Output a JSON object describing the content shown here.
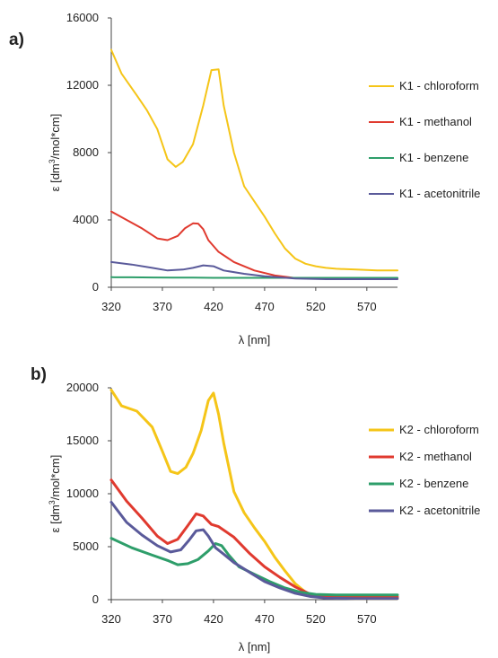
{
  "chart_data": [
    {
      "type": "line",
      "panel_label": "a)",
      "ylabel_main": "ε [dm",
      "ylabel_sup": "3",
      "ylabel_rest": "/mol*cm]",
      "xlabel": "λ [nm]",
      "xlim": [
        320,
        600
      ],
      "ylim": [
        0,
        16000
      ],
      "xticks": [
        320,
        370,
        420,
        470,
        520,
        570
      ],
      "yticks": [
        0,
        4000,
        8000,
        12000,
        16000
      ],
      "grid": false,
      "legend_position": "right",
      "series": [
        {
          "name": "K1 - chloroform",
          "color": "#f5c518",
          "x": [
            320,
            330,
            345,
            355,
            365,
            375,
            383,
            390,
            400,
            410,
            418,
            425,
            430,
            440,
            450,
            460,
            470,
            480,
            490,
            500,
            510,
            520,
            530,
            540,
            560,
            580,
            600
          ],
          "y": [
            14100,
            12700,
            11400,
            10500,
            9400,
            7600,
            7150,
            7450,
            8500,
            10800,
            12900,
            12950,
            10800,
            8000,
            6000,
            5100,
            4200,
            3200,
            2300,
            1700,
            1400,
            1250,
            1150,
            1100,
            1050,
            1000,
            1000
          ]
        },
        {
          "name": "K1 - methanol",
          "color": "#e03a2f",
          "x": [
            320,
            335,
            350,
            365,
            375,
            385,
            392,
            400,
            405,
            410,
            415,
            425,
            440,
            460,
            480,
            500,
            520,
            540,
            570,
            600
          ],
          "y": [
            4500,
            4000,
            3500,
            2900,
            2800,
            3050,
            3500,
            3800,
            3780,
            3450,
            2800,
            2100,
            1500,
            1000,
            700,
            550,
            520,
            500,
            500,
            500
          ]
        },
        {
          "name": "K1 - benzene",
          "color": "#2e9e6a",
          "x": [
            320,
            340,
            360,
            380,
            400,
            420,
            440,
            460,
            480,
            500,
            520,
            540,
            560,
            580,
            600
          ],
          "y": [
            600,
            590,
            580,
            570,
            570,
            560,
            560,
            560,
            560,
            560,
            560,
            560,
            560,
            560,
            560
          ]
        },
        {
          "name": "K1 - acetonitrile",
          "color": "#5a5a9a",
          "x": [
            320,
            340,
            360,
            375,
            390,
            400,
            410,
            420,
            430,
            450,
            470,
            500,
            530,
            560,
            600
          ],
          "y": [
            1500,
            1350,
            1150,
            1000,
            1050,
            1150,
            1300,
            1250,
            1000,
            800,
            650,
            520,
            480,
            480,
            480
          ]
        }
      ]
    },
    {
      "type": "line",
      "panel_label": "b)",
      "ylabel_main": "ε [dm",
      "ylabel_sup": "3",
      "ylabel_rest": "/mol*cm]",
      "xlabel": "λ [nm]",
      "xlim": [
        320,
        600
      ],
      "ylim": [
        0,
        20000
      ],
      "xticks": [
        320,
        370,
        420,
        470,
        520,
        570
      ],
      "yticks": [
        0,
        5000,
        10000,
        15000,
        20000
      ],
      "grid": false,
      "legend_position": "right",
      "series": [
        {
          "name": "K2 - chloroform",
          "color": "#f5c518",
          "x": [
            320,
            330,
            345,
            360,
            370,
            378,
            385,
            393,
            400,
            408,
            415,
            420,
            425,
            430,
            440,
            450,
            460,
            470,
            480,
            490,
            500,
            510,
            520,
            540,
            560,
            580,
            600
          ],
          "y": [
            19800,
            18300,
            17800,
            16300,
            14000,
            12100,
            11900,
            12500,
            13800,
            16000,
            18800,
            19500,
            17500,
            14800,
            10200,
            8200,
            6800,
            5500,
            4000,
            2700,
            1500,
            700,
            300,
            150,
            100,
            100,
            100
          ]
        },
        {
          "name": "K2 - methanol",
          "color": "#e03a2f",
          "x": [
            320,
            335,
            350,
            365,
            375,
            385,
            395,
            403,
            410,
            418,
            425,
            440,
            455,
            470,
            485,
            500,
            515,
            530,
            560,
            600
          ],
          "y": [
            11300,
            9300,
            7700,
            6000,
            5300,
            5700,
            7000,
            8100,
            7900,
            7100,
            6900,
            5900,
            4400,
            3100,
            2100,
            1200,
            500,
            300,
            250,
            250
          ]
        },
        {
          "name": "K2 - benzene",
          "color": "#2e9e6a",
          "x": [
            320,
            340,
            360,
            375,
            385,
            395,
            405,
            415,
            422,
            428,
            435,
            445,
            460,
            475,
            490,
            505,
            520,
            540,
            570,
            600
          ],
          "y": [
            5800,
            4900,
            4200,
            3700,
            3300,
            3400,
            3800,
            4600,
            5300,
            5100,
            4200,
            3100,
            2400,
            1700,
            1100,
            700,
            500,
            450,
            450,
            450
          ]
        },
        {
          "name": "K2 - acetonitrile",
          "color": "#5a5a9a",
          "x": [
            320,
            335,
            350,
            365,
            378,
            388,
            396,
            403,
            410,
            415,
            422,
            430,
            440,
            455,
            470,
            485,
            500,
            515,
            530,
            560,
            600
          ],
          "y": [
            9200,
            7300,
            6100,
            5100,
            4500,
            4700,
            5600,
            6500,
            6600,
            6000,
            4900,
            4300,
            3500,
            2600,
            1700,
            1100,
            600,
            300,
            150,
            100,
            100
          ]
        }
      ]
    }
  ]
}
